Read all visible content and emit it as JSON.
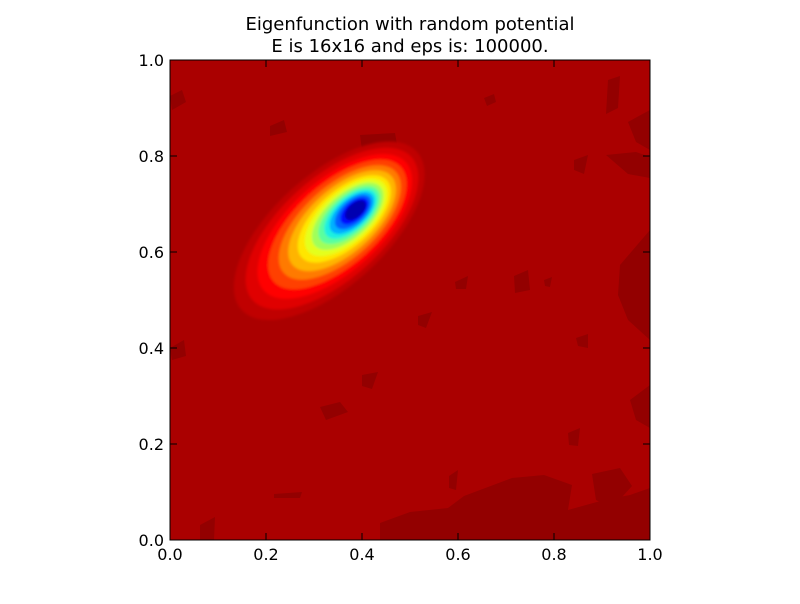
{
  "chart_data": {
    "type": "heatmap",
    "title_lines": [
      "Eigenfunction with random potential",
      "E is 16x16 and eps is: 100000."
    ],
    "xlabel": "",
    "ylabel": "",
    "xlim": [
      0.0,
      1.0
    ],
    "ylim": [
      0.0,
      1.0
    ],
    "x_ticks": [
      "0.0",
      "0.2",
      "0.4",
      "0.6",
      "0.8",
      "1.0"
    ],
    "y_ticks": [
      "0.0",
      "0.2",
      "0.4",
      "0.6",
      "0.8",
      "1.0"
    ],
    "colormap": "jet",
    "background_color": "#aa0000",
    "shadow_color": "#930000",
    "peak": {
      "x": 0.39,
      "y": 0.69,
      "value": "minimum (dark blue)"
    },
    "grid": false,
    "legend": "none"
  }
}
